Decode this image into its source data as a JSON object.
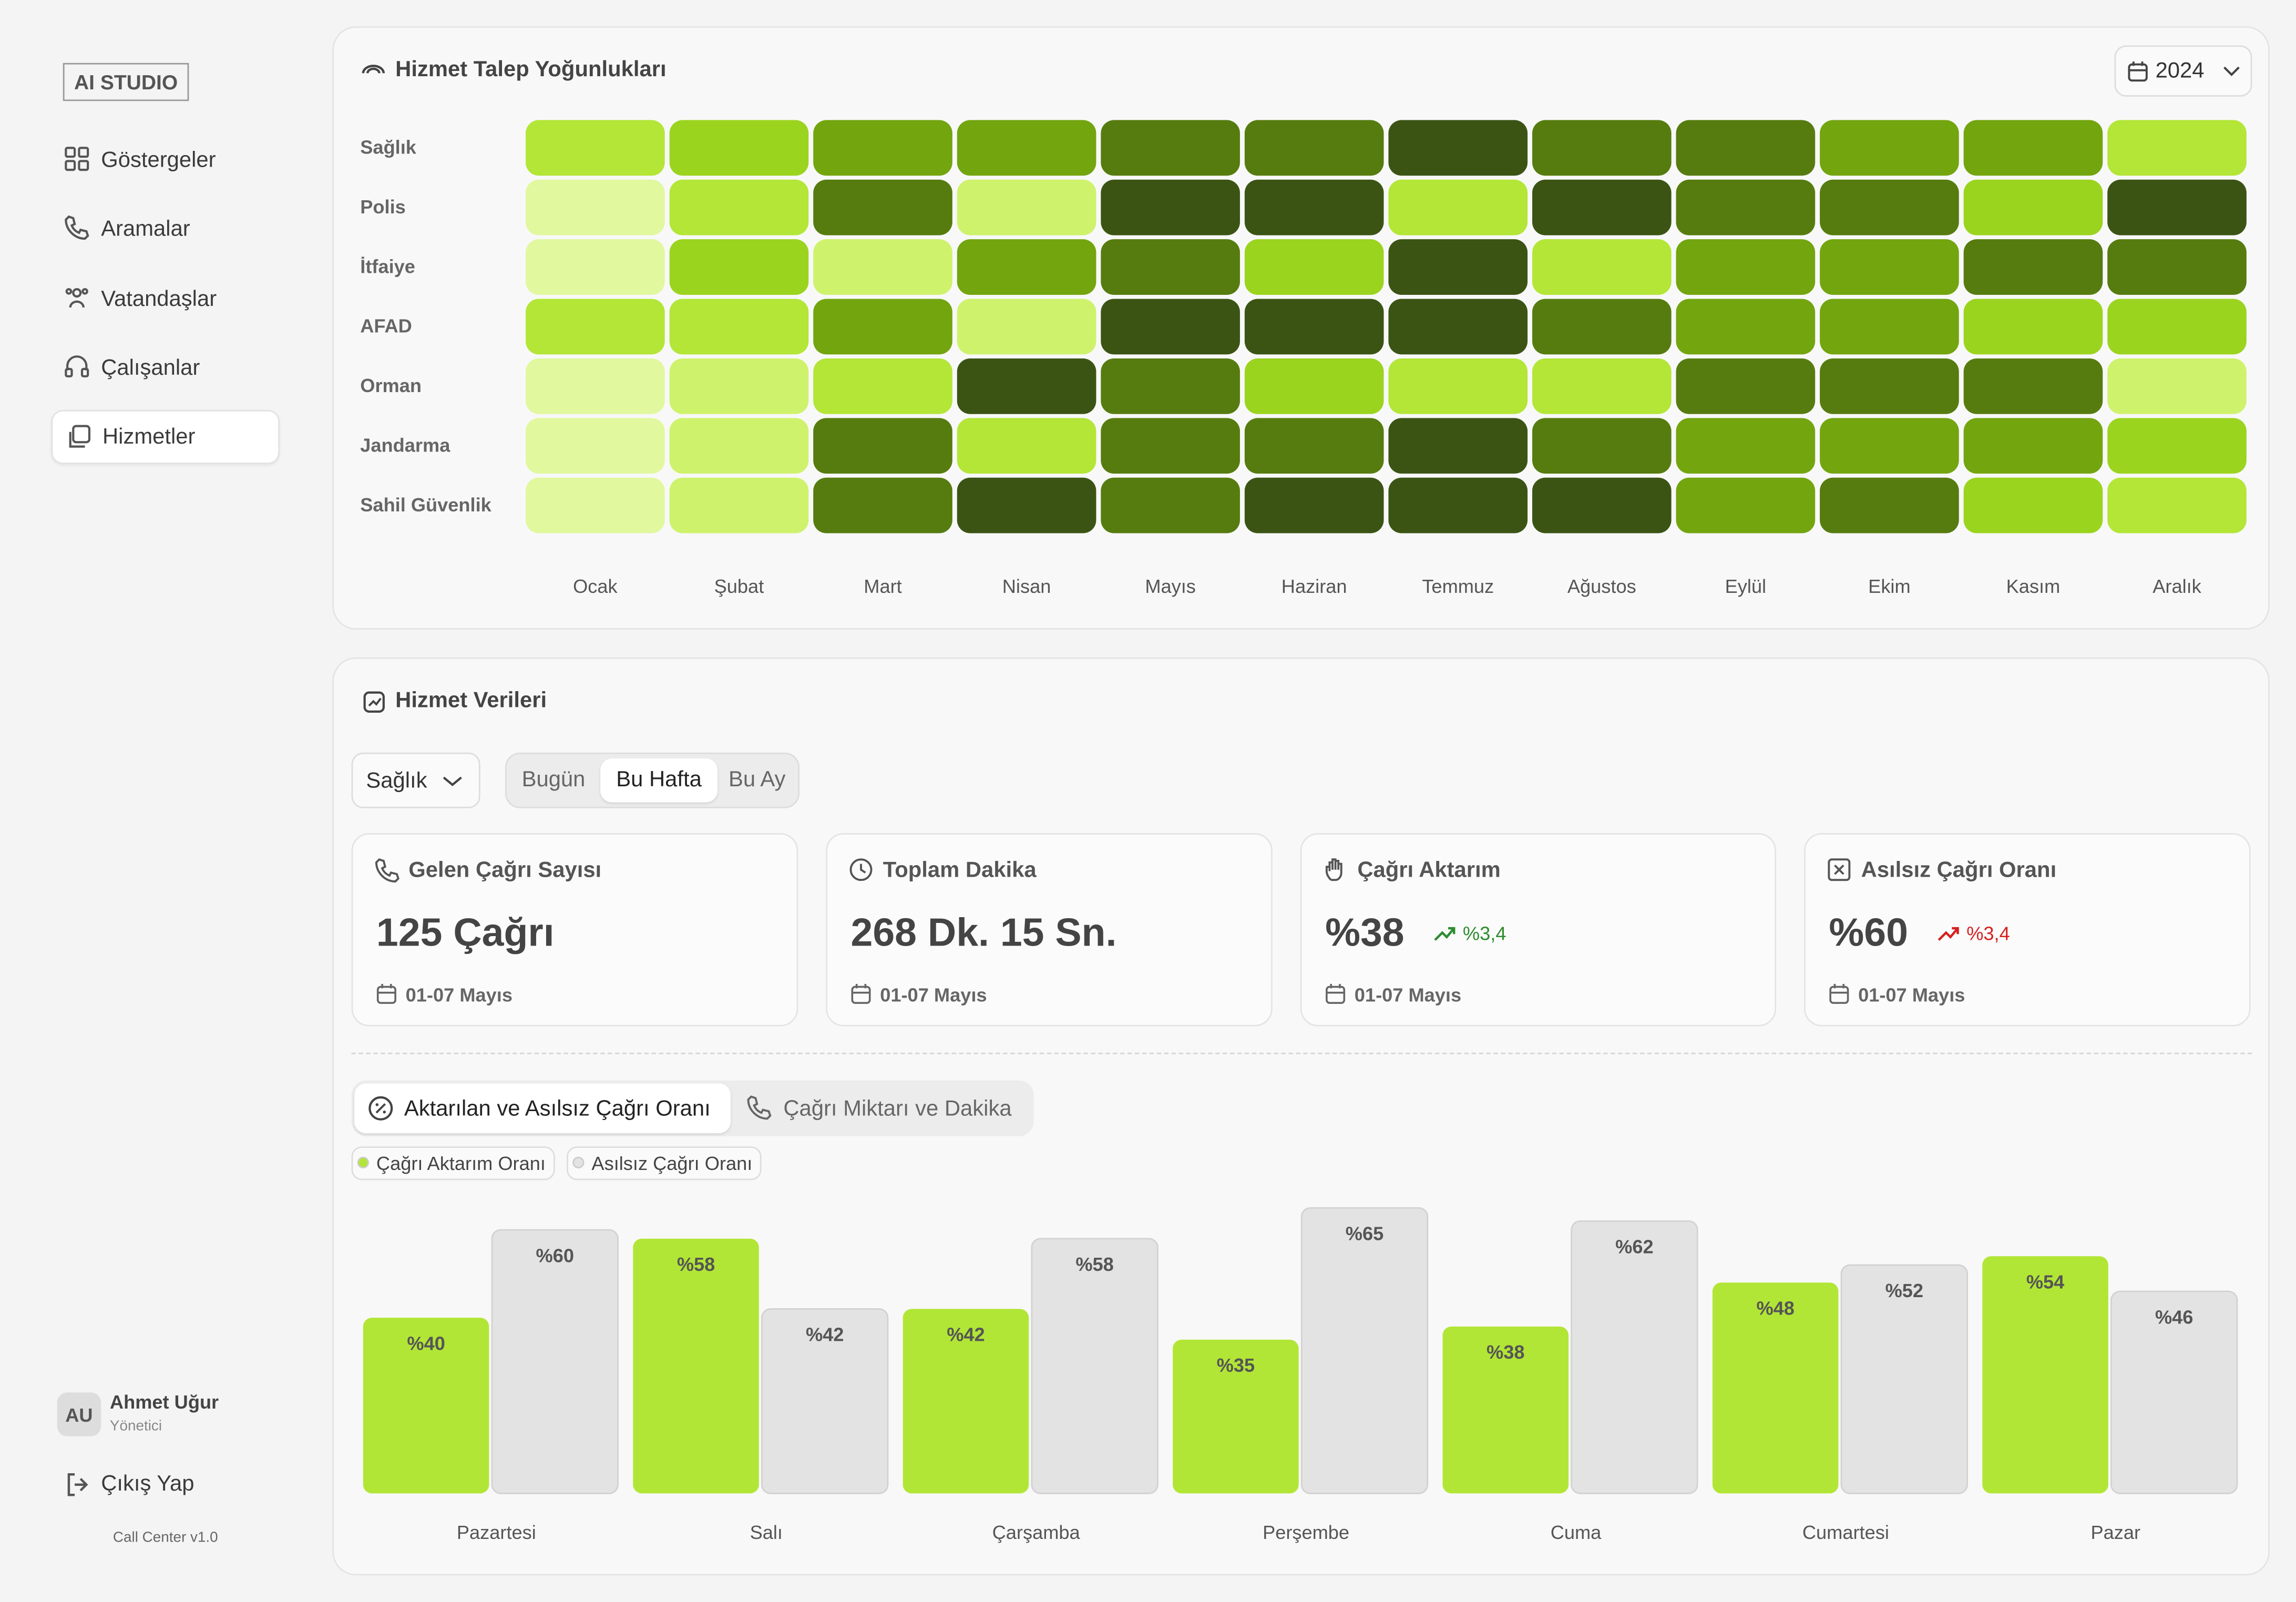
{
  "sidebar": {
    "logo": "AI STUDIO",
    "nav": [
      "Göstergeler",
      "Aramalar",
      "Vatandaşlar",
      "Çalışanlar",
      "Hizmetler"
    ],
    "active": 4,
    "user": {
      "initials": "AU",
      "name": "Ahmet Uğur",
      "role": "Yönetici"
    },
    "logout": "Çıkış Yap",
    "version": "Call Center v1.0"
  },
  "heatmap": {
    "type": "heatmap",
    "title": "Hizmet Talep Yoğunlukları",
    "year": "2024",
    "rows": [
      "Sağlık",
      "Polis",
      "İtfaiye",
      "AFAD",
      "Orman",
      "Jandarma",
      "Sahil Güvenlik"
    ],
    "columns": [
      "Ocak",
      "Şubat",
      "Mart",
      "Nisan",
      "Mayıs",
      "Haziran",
      "Temmuz",
      "Ağustos",
      "Eylül",
      "Ekim",
      "Kasım",
      "Aralık"
    ],
    "values": [
      [
        3,
        4,
        5,
        5,
        6,
        6,
        7,
        6,
        6,
        5,
        5,
        3
      ],
      [
        1,
        3,
        6,
        2,
        7,
        7,
        3,
        7,
        6,
        6,
        4,
        7
      ],
      [
        1,
        4,
        2,
        5,
        6,
        4,
        7,
        3,
        5,
        5,
        6,
        6
      ],
      [
        3,
        3,
        5,
        2,
        7,
        7,
        7,
        6,
        5,
        5,
        4,
        4
      ],
      [
        1,
        2,
        3,
        7,
        6,
        4,
        3,
        3,
        6,
        6,
        6,
        2
      ],
      [
        1,
        2,
        6,
        3,
        6,
        6,
        7,
        6,
        5,
        5,
        5,
        4
      ],
      [
        1,
        2,
        6,
        7,
        6,
        7,
        7,
        7,
        5,
        6,
        4,
        3
      ]
    ],
    "colors": [
      "#e1f89e",
      "#cff26c",
      "#b3e637",
      "#9bd41f",
      "#73a50f",
      "#567c0f",
      "#3b5414"
    ]
  },
  "services": {
    "title": "Hizmet Verileri",
    "filter": "Sağlık",
    "periods": [
      "Bugün",
      "Bu Hafta",
      "Bu Ay"
    ],
    "active_period": 1,
    "cards": [
      {
        "title": "Gelen Çağrı Sayısı",
        "value": "125 Çağrı",
        "date": "01-07 Mayıs"
      },
      {
        "title": "Toplam Dakika",
        "value": "268 Dk. 15 Sn.",
        "date": "01-07 Mayıs"
      },
      {
        "title": "Çağrı Aktarım",
        "value": "%38",
        "change": "%3,4",
        "change_color": "#2e8b2e",
        "date": "01-07 Mayıs"
      },
      {
        "title": "Asılsız Çağrı Oranı",
        "value": "%60",
        "change": "%3,4",
        "change_color": "#d62020",
        "date": "01-07 Mayıs"
      }
    ],
    "tabs": [
      "Aktarılan ve Asılsız Çağrı Oranı",
      "Çağrı Miktarı ve Dakika"
    ],
    "active_tab": 0
  },
  "chart_data": {
    "type": "bar",
    "categories": [
      "Pazartesi",
      "Salı",
      "Çarşamba",
      "Perşembe",
      "Cuma",
      "Cumartesi",
      "Pazar"
    ],
    "series": [
      {
        "name": "Çağrı Aktarım Oranı",
        "color": "#b2e636",
        "values": [
          40,
          58,
          42,
          35,
          38,
          48,
          54
        ],
        "value_labels": [
          "%40",
          "%58",
          "%42",
          "%35",
          "%38",
          "%48",
          "%54"
        ]
      },
      {
        "name": "Asılsız Çağrı Oranı",
        "color": "#e3e3e3",
        "values": [
          60,
          42,
          58,
          65,
          62,
          52,
          46
        ],
        "value_labels": [
          "%60",
          "%42",
          "%58",
          "%65",
          "%62",
          "%52",
          "%46"
        ]
      }
    ],
    "ylim": [
      0,
      70
    ]
  }
}
